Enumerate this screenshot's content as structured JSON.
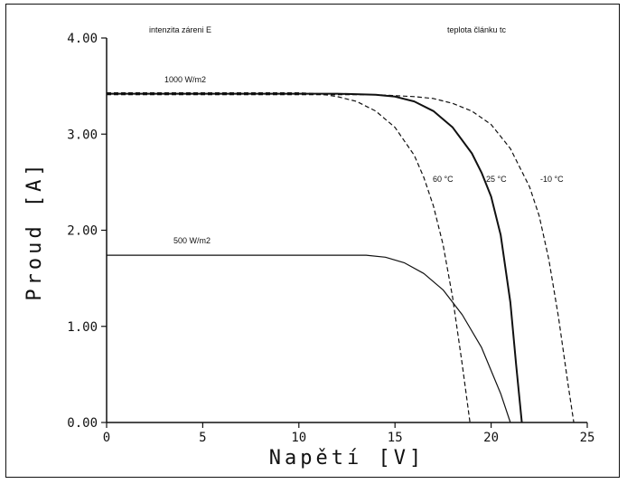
{
  "chart_data": {
    "type": "line",
    "xlabel": "Napětí [V]",
    "ylabel": "Proud [A]",
    "xlim": [
      0,
      25
    ],
    "ylim": [
      0,
      4
    ],
    "x_ticks": [
      "0",
      "5",
      "10",
      "15",
      "20",
      "25"
    ],
    "y_ticks": [
      "0.00",
      "1.00",
      "2.00",
      "3.00",
      "4.00"
    ],
    "grid": false,
    "annotations": {
      "irradiance_header": "intenzita záreni E",
      "temperature_header": "teplota článku tc",
      "label_1000": "1000 W/m2",
      "label_500": "500 W/m2",
      "label_60": "60 °C",
      "label_25": "25 °C",
      "label_m10": "-10 °C"
    },
    "series": [
      {
        "name": "1000 W/m2, 25 °C",
        "style": "solid-bold",
        "x": [
          0,
          5,
          10,
          12,
          14,
          15,
          16,
          17,
          18,
          19,
          19.5,
          20,
          20.5,
          21,
          21.3,
          21.5,
          21.6
        ],
        "y": [
          3.42,
          3.42,
          3.42,
          3.42,
          3.41,
          3.39,
          3.34,
          3.24,
          3.07,
          2.8,
          2.6,
          2.35,
          1.95,
          1.25,
          0.6,
          0.2,
          0
        ]
      },
      {
        "name": "1000 W/m2, 60 °C",
        "style": "dashed",
        "x": [
          0,
          5,
          10,
          11,
          12,
          13,
          14,
          15,
          16,
          16.5,
          17,
          17.5,
          18,
          18.5,
          18.9
        ],
        "y": [
          3.43,
          3.43,
          3.43,
          3.42,
          3.39,
          3.34,
          3.24,
          3.07,
          2.78,
          2.55,
          2.25,
          1.85,
          1.3,
          0.6,
          0
        ]
      },
      {
        "name": "1000 W/m2, -10 °C",
        "style": "dashed",
        "x": [
          0,
          5,
          10,
          12,
          14,
          16,
          17,
          18,
          19,
          20,
          21,
          22,
          22.5,
          23,
          23.5,
          24,
          24.3
        ],
        "y": [
          3.41,
          3.41,
          3.41,
          3.41,
          3.41,
          3.39,
          3.37,
          3.32,
          3.24,
          3.1,
          2.85,
          2.45,
          2.15,
          1.7,
          1.1,
          0.4,
          0
        ]
      },
      {
        "name": "500 W/m2",
        "style": "solid",
        "x": [
          0,
          5,
          10,
          13.5,
          14.5,
          15.5,
          16.5,
          17.5,
          18.5,
          19.5,
          20.5,
          21
        ],
        "y": [
          1.74,
          1.74,
          1.74,
          1.74,
          1.72,
          1.66,
          1.55,
          1.38,
          1.12,
          0.78,
          0.3,
          0
        ]
      }
    ]
  }
}
